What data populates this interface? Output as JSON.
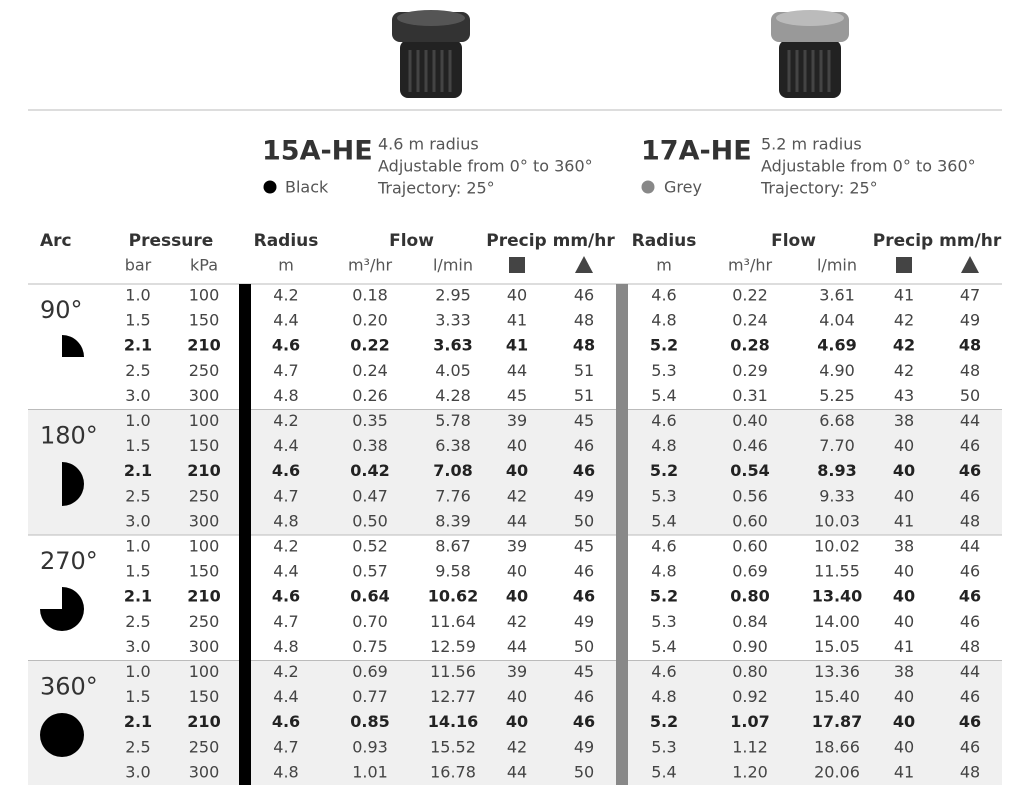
{
  "models": [
    {
      "name": "15A-HE",
      "color": "Black",
      "radius": "4.6 m radius",
      "arc": "Adjustable from 0° to 360°",
      "trajectory": "Trajectory: 25°"
    },
    {
      "name": "17A-HE",
      "color": "Grey",
      "radius": "5.2 m radius",
      "arc": "Adjustable from 0° to 360°",
      "trajectory": "Trajectory: 25°"
    }
  ],
  "table": {
    "headers": {
      "arc": "Arc",
      "pressure": "Pressure",
      "bar": "bar",
      "kpa": "kPa",
      "models": [
        {
          "radius": "Radius",
          "flow": "Flow",
          "precip": "Precip mm/hr",
          "radius_unit": "m",
          "flow_m3": "m³/hr",
          "flow_l": "l/min"
        },
        {
          "radius": "Radius",
          "flow": "Flow",
          "precip": "Precip mm/hr",
          "radius_unit": "m",
          "flow_m3": "m³/hr",
          "flow_l": "l/min"
        }
      ]
    },
    "groups": [
      {
        "arc": "90°",
        "rows": [
          [
            "1.0",
            "100",
            "4.2",
            "0.18",
            "2.95",
            "40",
            "46",
            "4.6",
            "0.22",
            "3.61",
            "41",
            "47"
          ],
          [
            "1.5",
            "150",
            "4.4",
            "0.20",
            "3.33",
            "41",
            "48",
            "4.8",
            "0.24",
            "4.04",
            "42",
            "49"
          ],
          [
            "2.1",
            "210",
            "4.6",
            "0.22",
            "3.63",
            "41",
            "48",
            "5.2",
            "0.28",
            "4.69",
            "42",
            "48"
          ],
          [
            "2.5",
            "250",
            "4.7",
            "0.24",
            "4.05",
            "44",
            "51",
            "5.3",
            "0.29",
            "4.90",
            "42",
            "48"
          ],
          [
            "3.0",
            "300",
            "4.8",
            "0.26",
            "4.28",
            "45",
            "51",
            "5.4",
            "0.31",
            "5.25",
            "43",
            "50"
          ]
        ]
      },
      {
        "arc": "180°",
        "rows": [
          [
            "1.0",
            "100",
            "4.2",
            "0.35",
            "5.78",
            "39",
            "45",
            "4.6",
            "0.40",
            "6.68",
            "38",
            "44"
          ],
          [
            "1.5",
            "150",
            "4.4",
            "0.38",
            "6.38",
            "40",
            "46",
            "4.8",
            "0.46",
            "7.70",
            "40",
            "46"
          ],
          [
            "2.1",
            "210",
            "4.6",
            "0.42",
            "7.08",
            "40",
            "46",
            "5.2",
            "0.54",
            "8.93",
            "40",
            "46"
          ],
          [
            "2.5",
            "250",
            "4.7",
            "0.47",
            "7.76",
            "42",
            "49",
            "5.3",
            "0.56",
            "9.33",
            "40",
            "46"
          ],
          [
            "3.0",
            "300",
            "4.8",
            "0.50",
            "8.39",
            "44",
            "50",
            "5.4",
            "0.60",
            "10.03",
            "41",
            "48"
          ]
        ]
      },
      {
        "arc": "270°",
        "rows": [
          [
            "1.0",
            "100",
            "4.2",
            "0.52",
            "8.67",
            "39",
            "45",
            "4.6",
            "0.60",
            "10.02",
            "38",
            "44"
          ],
          [
            "1.5",
            "150",
            "4.4",
            "0.57",
            "9.58",
            "40",
            "46",
            "4.8",
            "0.69",
            "11.55",
            "40",
            "46"
          ],
          [
            "2.1",
            "210",
            "4.6",
            "0.64",
            "10.62",
            "40",
            "46",
            "5.2",
            "0.80",
            "13.40",
            "40",
            "46"
          ],
          [
            "2.5",
            "250",
            "4.7",
            "0.70",
            "11.64",
            "42",
            "49",
            "5.3",
            "0.84",
            "14.00",
            "40",
            "46"
          ],
          [
            "3.0",
            "300",
            "4.8",
            "0.75",
            "12.59",
            "44",
            "50",
            "5.4",
            "0.90",
            "15.05",
            "41",
            "48"
          ]
        ]
      },
      {
        "arc": "360°",
        "rows": [
          [
            "1.0",
            "100",
            "4.2",
            "0.69",
            "11.56",
            "39",
            "45",
            "4.6",
            "0.80",
            "13.36",
            "38",
            "44"
          ],
          [
            "1.5",
            "150",
            "4.4",
            "0.77",
            "12.77",
            "40",
            "46",
            "4.8",
            "0.92",
            "15.40",
            "40",
            "46"
          ],
          [
            "2.1",
            "210",
            "4.6",
            "0.85",
            "14.16",
            "40",
            "46",
            "5.2",
            "1.07",
            "17.87",
            "40",
            "46"
          ],
          [
            "2.5",
            "250",
            "4.7",
            "0.93",
            "15.52",
            "42",
            "49",
            "5.3",
            "1.12",
            "18.66",
            "40",
            "46"
          ],
          [
            "3.0",
            "300",
            "4.8",
            "1.01",
            "16.78",
            "44",
            "50",
            "5.4",
            "1.20",
            "20.06",
            "41",
            "48"
          ]
        ]
      }
    ]
  }
}
